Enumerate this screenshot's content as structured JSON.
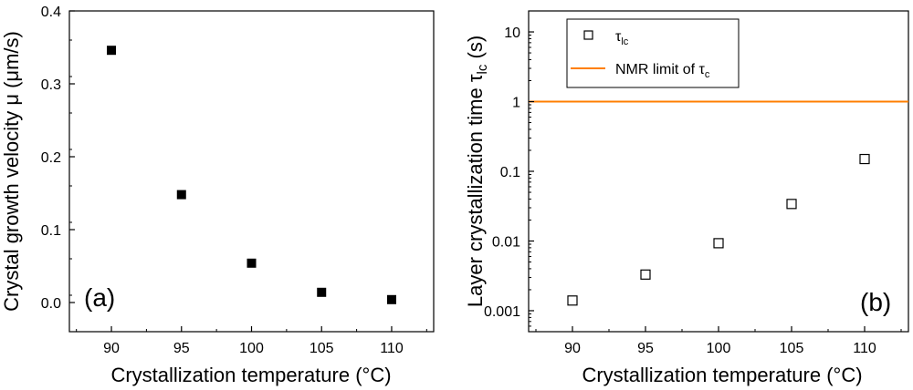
{
  "chart_data": [
    {
      "type": "scatter",
      "panel_label": "(a)",
      "xlabel": "Crystallization temperature (°C)",
      "ylabel": "Crystal growth velocity μ (μm/s)",
      "xlim": [
        87,
        113
      ],
      "ylim": [
        -0.04,
        0.4
      ],
      "x_ticks": [
        90,
        95,
        100,
        105,
        110
      ],
      "x_tick_labels": [
        "90",
        "95",
        "100",
        "105",
        "110"
      ],
      "y_ticks": [
        0.0,
        0.1,
        0.2,
        0.3,
        0.4
      ],
      "y_tick_labels": [
        "0.0",
        "0.1",
        "0.2",
        "0.3",
        "0.4"
      ],
      "grid": false,
      "series": [
        {
          "marker": "filled-square",
          "color": "#000000",
          "x": [
            90,
            95,
            100,
            105,
            110
          ],
          "y": [
            0.346,
            0.148,
            0.054,
            0.014,
            0.004
          ]
        }
      ]
    },
    {
      "type": "scatter",
      "panel_label": "(b)",
      "xlabel": "Crystallization temperature (°C)",
      "ylabel_main": "Layer crystallization time τ",
      "ylabel_sub": "lc",
      "ylabel_unit": " (s)",
      "xlim": [
        87,
        113
      ],
      "ylim": [
        0.0005,
        20
      ],
      "y_scale": "log",
      "x_ticks": [
        90,
        95,
        100,
        105,
        110
      ],
      "x_tick_labels": [
        "90",
        "95",
        "100",
        "105",
        "110"
      ],
      "y_ticks": [
        0.001,
        0.01,
        0.1,
        1,
        10
      ],
      "y_tick_labels": [
        "0.001",
        "0.01",
        "0.1",
        "1",
        "10"
      ],
      "grid": false,
      "legend_position": "top-left",
      "series": [
        {
          "name_main": "τ",
          "name_sub": "lc",
          "marker": "open-square",
          "color": "#000000",
          "x": [
            90,
            95,
            100,
            105,
            110
          ],
          "y": [
            0.0014,
            0.0033,
            0.0093,
            0.034,
            0.15
          ]
        },
        {
          "name_main": "NMR limit of τ",
          "name_sub": "c",
          "type": "hline",
          "color": "#ff7f00",
          "y": 1
        }
      ]
    }
  ]
}
